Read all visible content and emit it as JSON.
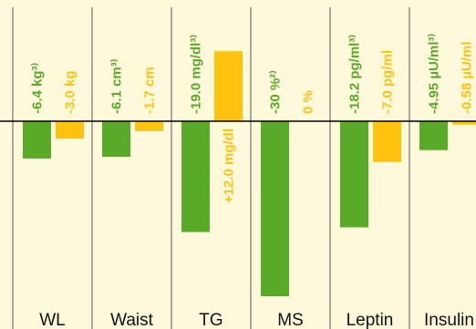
{
  "colors": {
    "background": "#fff9dc",
    "series_a": "#5aaa2a",
    "series_b": "#ffc20e",
    "divider": "#555555",
    "baseline": "#000000"
  },
  "chart_data": {
    "type": "bar",
    "categories": [
      "WL",
      "Waist",
      "TG",
      "MS",
      "Leptin",
      "Insulin"
    ],
    "series": [
      {
        "values": [
          -6.4,
          -6.1,
          -19.0,
          -30,
          -18.2,
          -4.95
        ],
        "labels": [
          "-6.4 kg³⁾",
          "-6.1 cm³⁾",
          "-19.0 mg/dl³⁾",
          "-30 %²⁾",
          "-18.2 pg/ml³⁾",
          "-4.95 µU/ml³⁾"
        ]
      },
      {
        "values": [
          -3.0,
          -1.7,
          12.0,
          0,
          -7.0,
          -0.58
        ],
        "labels": [
          "-3.0 kg",
          "-1.7 cm",
          "+12.0 mg/dl",
          "0 %",
          "-7.0 pg/ml",
          "-0.58 µU/ml"
        ]
      }
    ]
  }
}
